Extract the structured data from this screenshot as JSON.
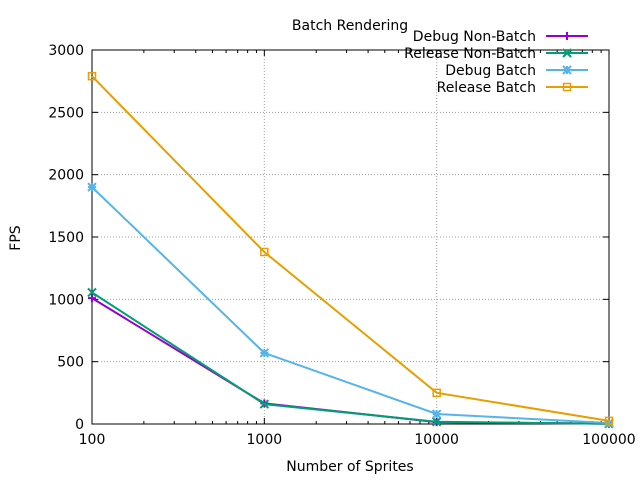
{
  "chart_data": {
    "type": "line",
    "title": "Batch Rendering",
    "xlabel": "Number of Sprites",
    "ylabel": "FPS",
    "x_scale": "log",
    "xlim": [
      100,
      100000
    ],
    "ylim": [
      0,
      3000
    ],
    "x_ticks": [
      100,
      1000,
      10000,
      100000
    ],
    "x_tick_labels": [
      "100",
      "1000",
      "10000",
      "100000"
    ],
    "y_ticks": [
      0,
      500,
      1000,
      1500,
      2000,
      2500,
      3000
    ],
    "y_tick_labels": [
      "0",
      "500",
      "1000",
      "1500",
      "2000",
      "2500",
      "3000"
    ],
    "grid": true,
    "legend_position": "top-right",
    "x": [
      100,
      1000,
      10000,
      100000
    ],
    "series": [
      {
        "name": "Debug Non-Batch",
        "values": [
          1010,
          165,
          15,
          2
        ],
        "color": "#9400d3",
        "marker": "plus"
      },
      {
        "name": "Release Non-Batch",
        "values": [
          1055,
          160,
          18,
          2
        ],
        "color": "#009e73",
        "marker": "cross"
      },
      {
        "name": "Debug Batch",
        "values": [
          1900,
          570,
          80,
          8
        ],
        "color": "#56b4e9",
        "marker": "star"
      },
      {
        "name": "Release Batch",
        "values": [
          2790,
          1380,
          250,
          25
        ],
        "color": "#e69f00",
        "marker": "square"
      }
    ]
  }
}
